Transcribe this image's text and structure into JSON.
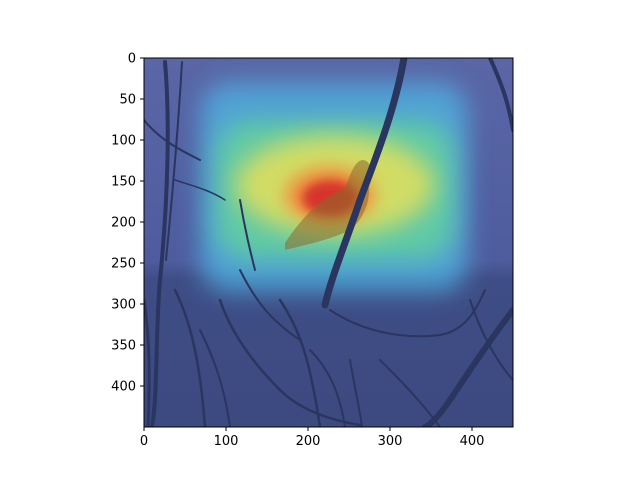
{
  "figure": {
    "image_extent": {
      "width": 450,
      "height": 450
    },
    "x_ticks": [
      {
        "value": 0,
        "label": "0"
      },
      {
        "value": 100,
        "label": "100"
      },
      {
        "value": 200,
        "label": "200"
      },
      {
        "value": 300,
        "label": "300"
      },
      {
        "value": 400,
        "label": "400"
      }
    ],
    "y_ticks": [
      {
        "value": 0,
        "label": "0"
      },
      {
        "value": 50,
        "label": "50"
      },
      {
        "value": 100,
        "label": "100"
      },
      {
        "value": 150,
        "label": "150"
      },
      {
        "value": 200,
        "label": "200"
      },
      {
        "value": 250,
        "label": "250"
      },
      {
        "value": 300,
        "label": "300"
      },
      {
        "value": 350,
        "label": "350"
      },
      {
        "value": 400,
        "label": "400"
      }
    ],
    "colormap": "jet",
    "colors": {
      "background_cool": "#4a5a9c",
      "heat_hot": "#d42a2a",
      "heat_warm": "#f2c84a",
      "heat_mid": "#63d49a",
      "heat_low": "#4fb6e6",
      "branch": "#2a3560"
    }
  }
}
